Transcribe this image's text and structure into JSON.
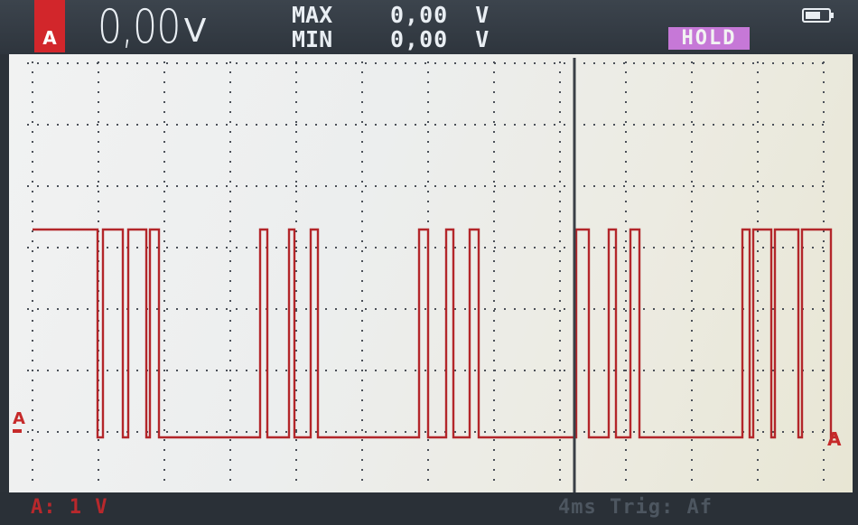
{
  "header": {
    "channel": "A",
    "main_value": "0,00",
    "main_unit": "V",
    "max_label": "MAX",
    "min_label": "MIN",
    "max_value": "0,00",
    "max_unit": "V",
    "min_value": "0,00",
    "min_unit": "V",
    "hold": "HOLD",
    "battery_icon": "battery-icon"
  },
  "plot": {
    "left_marker": "A",
    "right_marker": "A",
    "trace_color": "#b3262a",
    "grid_color": "#4b5058",
    "trigger_cursor_color": "#3a3f46"
  },
  "footer": {
    "scale": "A: 1 V",
    "timebase": "4ms Trig: Af"
  }
}
